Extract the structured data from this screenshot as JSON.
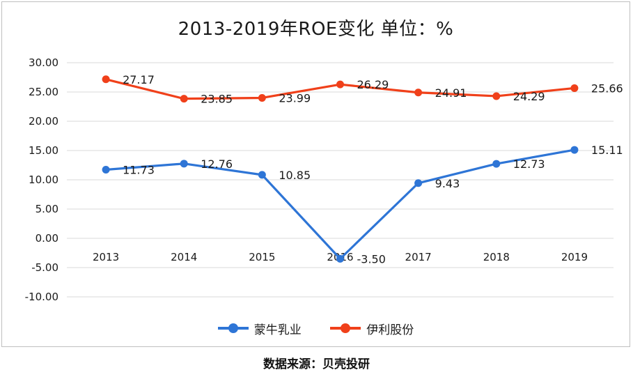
{
  "chart_data": {
    "type": "line",
    "title": "2013-2019年ROE变化 单位：%",
    "categories": [
      "2013",
      "2014",
      "2015",
      "2016",
      "2017",
      "2018",
      "2019"
    ],
    "y_ticks": [
      "30.00",
      "25.00",
      "20.00",
      "15.00",
      "10.00",
      "5.00",
      "0.00",
      "-5.00",
      "-10.00"
    ],
    "ylim": [
      -10,
      30
    ],
    "grid": true,
    "legend_position": "bottom",
    "series": [
      {
        "name": "蒙牛乳业",
        "color": "#2E75D6",
        "values": [
          11.73,
          12.76,
          10.85,
          -3.5,
          9.43,
          12.73,
          15.11
        ],
        "labels": [
          "11.73",
          "12.76",
          "10.85",
          "-3.50",
          "9.43",
          "12.73",
          "15.11"
        ]
      },
      {
        "name": "伊利股份",
        "color": "#F0401A",
        "values": [
          27.17,
          23.85,
          23.99,
          26.29,
          24.91,
          24.29,
          25.66
        ],
        "labels": [
          "27.17",
          "23.85",
          "23.99",
          "26.29",
          "24.91",
          "24.29",
          "25.66"
        ]
      }
    ]
  },
  "source": "数据来源：贝壳投研"
}
